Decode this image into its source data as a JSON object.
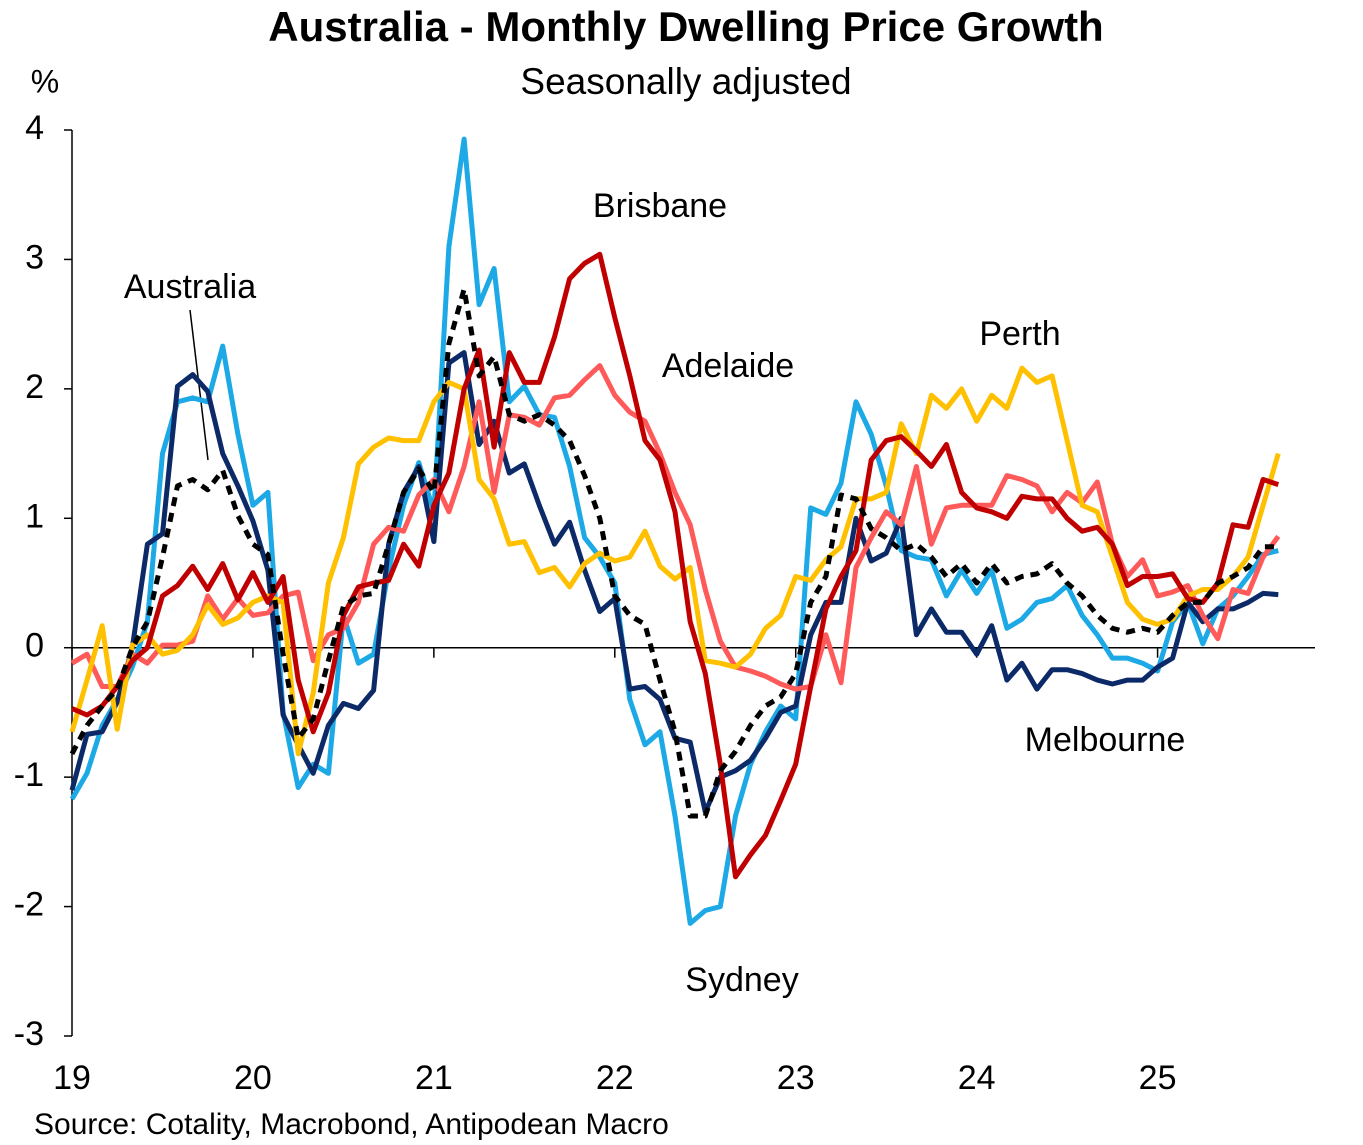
{
  "chart_data": {
    "type": "line",
    "title": "Australia - Monthly Dwelling Price Growth",
    "subtitle": "Seasonally adjusted",
    "y_unit": "%",
    "source": "Source: Cotality, Macrobond, Antipodean Macro",
    "xlim": [
      19,
      25.87
    ],
    "xticks": [
      19,
      20,
      21,
      22,
      23,
      24,
      25
    ],
    "ylim": [
      -3,
      4
    ],
    "yticks": [
      -3,
      -2,
      -1,
      0,
      1,
      2,
      3,
      4
    ],
    "x": [
      19,
      19.083,
      19.167,
      19.25,
      19.333,
      19.417,
      19.5,
      19.583,
      19.667,
      19.75,
      19.833,
      19.917,
      20,
      20.083,
      20.167,
      20.25,
      20.333,
      20.417,
      20.5,
      20.583,
      20.667,
      20.75,
      20.833,
      20.917,
      21,
      21.083,
      21.167,
      21.25,
      21.333,
      21.417,
      21.5,
      21.583,
      21.667,
      21.75,
      21.833,
      21.917,
      22,
      22.083,
      22.167,
      22.25,
      22.333,
      22.417,
      22.5,
      22.583,
      22.667,
      22.75,
      22.833,
      22.917,
      23,
      23.083,
      23.167,
      23.25,
      23.333,
      23.417,
      23.5,
      23.583,
      23.667,
      23.75,
      23.833,
      23.917,
      24,
      24.083,
      24.167,
      24.25,
      24.333,
      24.417,
      24.5,
      24.583,
      24.667,
      24.75,
      24.833,
      24.917,
      25,
      25.083,
      25.167,
      25.25,
      25.333,
      25.417,
      25.5,
      25.583,
      25.667
    ],
    "series": [
      {
        "name": "Sydney",
        "color": "#1ca9e6",
        "values": [
          -1.17,
          -0.97,
          -0.6,
          -0.4,
          -0.15,
          0.2,
          1.5,
          1.9,
          1.93,
          1.9,
          2.33,
          1.65,
          1.1,
          1.2,
          -0.5,
          -1.08,
          -0.9,
          -0.97,
          0.25,
          -0.12,
          -0.05,
          0.6,
          1.1,
          1.43,
          1.05,
          3.1,
          3.93,
          2.65,
          2.93,
          1.9,
          2.02,
          1.8,
          1.78,
          1.4,
          0.85,
          0.7,
          0.5,
          -0.4,
          -0.75,
          -0.65,
          -1.3,
          -2.13,
          -2.03,
          -2.0,
          -1.3,
          -0.9,
          -0.65,
          -0.45,
          -0.55,
          1.08,
          1.03,
          1.27,
          1.9,
          1.65,
          1.25,
          0.75,
          0.7,
          0.68,
          0.4,
          0.6,
          0.42,
          0.6,
          0.15,
          0.22,
          0.35,
          0.38,
          0.48,
          0.25,
          0.1,
          -0.08,
          -0.08,
          -0.12,
          -0.18,
          0.2,
          0.35,
          0.03,
          0.3,
          0.4,
          0.55,
          0.72,
          0.75
        ]
      },
      {
        "name": "Melbourne",
        "color": "#0d2a68",
        "values": [
          -1.1,
          -0.67,
          -0.65,
          -0.42,
          0.0,
          0.8,
          0.88,
          2.02,
          2.11,
          1.98,
          1.5,
          1.25,
          0.98,
          0.6,
          -0.52,
          -0.75,
          -0.97,
          -0.6,
          -0.43,
          -0.47,
          -0.33,
          0.8,
          1.2,
          1.4,
          0.82,
          2.2,
          2.28,
          1.57,
          1.75,
          1.35,
          1.42,
          1.1,
          0.8,
          0.97,
          0.6,
          0.28,
          0.38,
          -0.32,
          -0.3,
          -0.4,
          -0.7,
          -0.73,
          -1.27,
          -1.0,
          -0.95,
          -0.87,
          -0.7,
          -0.5,
          -0.45,
          0.1,
          0.35,
          0.35,
          1.0,
          0.67,
          0.73,
          1.0,
          0.1,
          0.3,
          0.12,
          0.12,
          -0.05,
          0.17,
          -0.25,
          -0.12,
          -0.32,
          -0.17,
          -0.17,
          -0.2,
          -0.25,
          -0.28,
          -0.25,
          -0.25,
          -0.15,
          -0.08,
          0.35,
          0.2,
          0.3,
          0.3,
          0.35,
          0.42,
          0.41
        ]
      },
      {
        "name": "Adelaide",
        "color": "#ff5a5a",
        "values": [
          -0.12,
          -0.05,
          -0.3,
          -0.3,
          -0.05,
          -0.12,
          0.02,
          0.02,
          0.05,
          0.4,
          0.22,
          0.38,
          0.25,
          0.27,
          0.4,
          0.43,
          -0.1,
          0.1,
          0.15,
          0.35,
          0.8,
          0.93,
          0.9,
          1.18,
          1.3,
          1.05,
          1.4,
          1.9,
          1.2,
          1.8,
          1.78,
          1.72,
          1.93,
          1.95,
          2.07,
          2.18,
          1.95,
          1.82,
          1.75,
          1.5,
          1.2,
          0.95,
          0.45,
          0.05,
          -0.15,
          -0.18,
          -0.22,
          -0.28,
          -0.32,
          -0.3,
          0.1,
          -0.27,
          0.62,
          0.85,
          1.05,
          0.95,
          1.4,
          0.8,
          1.08,
          1.1,
          1.1,
          1.1,
          1.33,
          1.3,
          1.25,
          1.05,
          1.2,
          1.12,
          1.28,
          0.8,
          0.55,
          0.68,
          0.4,
          0.43,
          0.48,
          0.25,
          0.07,
          0.45,
          0.42,
          0.7,
          0.86
        ]
      },
      {
        "name": "Perth",
        "color": "#ffc000",
        "values": [
          -0.65,
          -0.25,
          0.17,
          -0.63,
          0.02,
          0.1,
          -0.05,
          -0.02,
          0.1,
          0.33,
          0.18,
          0.23,
          0.35,
          0.4,
          0.35,
          -0.82,
          -0.35,
          0.5,
          0.85,
          1.42,
          1.55,
          1.62,
          1.6,
          1.6,
          1.9,
          2.05,
          2.0,
          1.3,
          1.15,
          0.8,
          0.82,
          0.58,
          0.62,
          0.47,
          0.65,
          0.73,
          0.67,
          0.7,
          0.9,
          0.63,
          0.53,
          0.62,
          -0.1,
          -0.12,
          -0.15,
          -0.05,
          0.15,
          0.25,
          0.55,
          0.52,
          0.68,
          0.78,
          1.15,
          1.15,
          1.2,
          1.73,
          1.5,
          1.95,
          1.85,
          2.0,
          1.75,
          1.95,
          1.85,
          2.16,
          2.05,
          2.1,
          1.6,
          1.1,
          1.05,
          0.7,
          0.35,
          0.22,
          0.18,
          0.22,
          0.4,
          0.45,
          0.45,
          0.55,
          0.7,
          1.1,
          1.5
        ]
      },
      {
        "name": "Brisbane",
        "color": "#c00000",
        "values": [
          -0.47,
          -0.52,
          -0.45,
          -0.3,
          -0.1,
          0.0,
          0.4,
          0.48,
          0.63,
          0.45,
          0.65,
          0.37,
          0.58,
          0.35,
          0.55,
          -0.25,
          -0.65,
          -0.35,
          0.25,
          0.47,
          0.5,
          0.52,
          0.8,
          0.63,
          1.1,
          1.35,
          2.0,
          2.3,
          1.55,
          2.28,
          2.05,
          2.05,
          2.4,
          2.85,
          2.97,
          3.04,
          2.55,
          2.1,
          1.6,
          1.45,
          1.05,
          0.2,
          -0.2,
          -0.9,
          -1.77,
          -1.6,
          -1.45,
          -1.18,
          -0.9,
          -0.3,
          0.3,
          0.55,
          0.75,
          1.45,
          1.6,
          1.63,
          1.52,
          1.4,
          1.57,
          1.2,
          1.08,
          1.05,
          1.0,
          1.17,
          1.15,
          1.15,
          1.0,
          0.9,
          0.93,
          0.8,
          0.48,
          0.55,
          0.55,
          0.57,
          0.38,
          0.35,
          0.5,
          0.95,
          0.93,
          1.3,
          1.26
        ]
      },
      {
        "name": "Australia",
        "color": "#000000",
        "dashed": true,
        "values": [
          -0.82,
          -0.6,
          -0.45,
          -0.32,
          0.0,
          0.2,
          0.7,
          1.25,
          1.3,
          1.22,
          1.37,
          1.02,
          0.8,
          0.72,
          -0.05,
          -0.7,
          -0.55,
          -0.1,
          0.32,
          0.4,
          0.42,
          0.8,
          1.2,
          1.38,
          1.2,
          2.35,
          2.77,
          2.1,
          2.25,
          1.8,
          1.75,
          1.8,
          1.72,
          1.6,
          1.33,
          1.0,
          0.4,
          0.25,
          0.18,
          -0.25,
          -0.65,
          -1.3,
          -1.3,
          -0.95,
          -0.8,
          -0.6,
          -0.45,
          -0.38,
          -0.2,
          0.35,
          0.55,
          1.18,
          1.15,
          0.92,
          0.85,
          0.75,
          0.8,
          0.7,
          0.55,
          0.65,
          0.5,
          0.65,
          0.5,
          0.55,
          0.57,
          0.65,
          0.5,
          0.4,
          0.25,
          0.15,
          0.12,
          0.15,
          0.12,
          0.25,
          0.35,
          0.35,
          0.5,
          0.55,
          0.62,
          0.78,
          0.78
        ]
      }
    ]
  }
}
